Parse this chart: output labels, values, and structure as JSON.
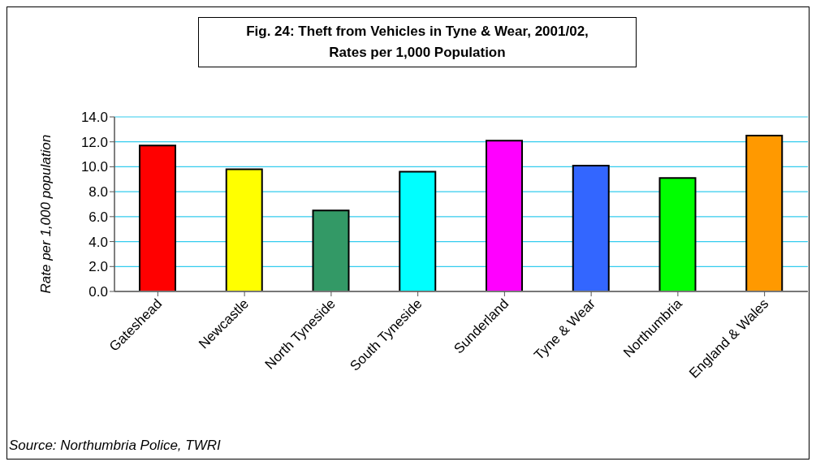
{
  "chart_data": {
    "type": "bar",
    "title": "Fig. 24: Theft from Vehicles in Tyne & Wear, 2001/02,\nRates per 1,000 Population",
    "ylabel": "Rate per 1,000 population",
    "categories": [
      "Gateshead",
      "Newcastle",
      "North Tyneside",
      "South Tyneside",
      "Sunderland",
      "Tyne & Wear",
      "Northumbria",
      "England & Wales"
    ],
    "values": [
      11.7,
      9.8,
      6.5,
      9.6,
      12.1,
      10.1,
      9.1,
      12.5
    ],
    "colors": [
      "#ff0000",
      "#ffff00",
      "#339966",
      "#00ffff",
      "#ff00ff",
      "#3366ff",
      "#00ff00",
      "#ff9900"
    ],
    "ylim": [
      0,
      14
    ],
    "yticks": [
      {
        "value": 0,
        "label": "0.0"
      },
      {
        "value": 2,
        "label": "2.0"
      },
      {
        "value": 4,
        "label": "4.0"
      },
      {
        "value": 6,
        "label": "6.0"
      },
      {
        "value": 8,
        "label": "8.0"
      },
      {
        "value": 10,
        "label": "10.0"
      },
      {
        "value": 12,
        "label": "12.0"
      },
      {
        "value": 14,
        "label": "14.0"
      }
    ],
    "grid": "y",
    "legend": false,
    "annotations": [
      "Source: Northumbria Police, TWRI"
    ]
  }
}
